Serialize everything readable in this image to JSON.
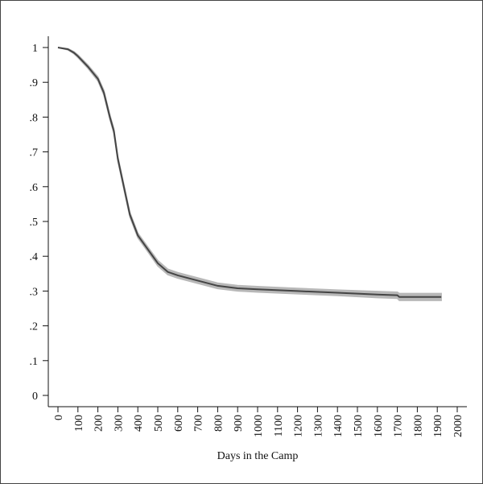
{
  "chart_data": {
    "type": "line",
    "x_label": "Days in the Camp",
    "x": [
      0,
      50,
      80,
      100,
      150,
      200,
      230,
      260,
      280,
      300,
      330,
      360,
      400,
      450,
      500,
      550,
      600,
      700,
      800,
      900,
      1000,
      1200,
      1400,
      1600,
      1700,
      1710,
      1920
    ],
    "series": [
      {
        "color": "#444444",
        "values": [
          1.0,
          0.995,
          0.985,
          0.975,
          0.945,
          0.91,
          0.87,
          0.8,
          0.76,
          0.68,
          0.6,
          0.52,
          0.46,
          0.42,
          0.38,
          0.355,
          0.345,
          0.33,
          0.315,
          0.308,
          0.305,
          0.3,
          0.295,
          0.29,
          0.288,
          0.283,
          0.283
        ]
      }
    ],
    "band": {
      "color": "#b8b8b8",
      "lower": [
        1.0,
        0.993,
        0.982,
        0.971,
        0.94,
        0.904,
        0.863,
        0.793,
        0.753,
        0.673,
        0.593,
        0.513,
        0.453,
        0.413,
        0.372,
        0.347,
        0.337,
        0.322,
        0.307,
        0.3,
        0.297,
        0.292,
        0.287,
        0.281,
        0.279,
        0.273,
        0.273
      ],
      "upper": [
        1.0,
        0.997,
        0.988,
        0.979,
        0.95,
        0.916,
        0.877,
        0.807,
        0.767,
        0.687,
        0.607,
        0.527,
        0.467,
        0.427,
        0.388,
        0.363,
        0.353,
        0.338,
        0.323,
        0.316,
        0.313,
        0.308,
        0.303,
        0.299,
        0.297,
        0.293,
        0.293
      ]
    },
    "xlim": [
      0,
      2000
    ],
    "xticks": [
      0,
      100,
      200,
      300,
      400,
      500,
      600,
      700,
      800,
      900,
      1000,
      1100,
      1200,
      1300,
      1400,
      1500,
      1600,
      1700,
      1800,
      1900,
      2000
    ],
    "ylim": [
      0,
      1
    ],
    "yticks": [
      0,
      {
        "value": 0.1,
        "label": ".1"
      },
      {
        "value": 0.2,
        "label": ".2"
      },
      {
        "value": 0.3,
        "label": ".3"
      },
      {
        "value": 0.4,
        "label": ".4"
      },
      {
        "value": 0.5,
        "label": ".5"
      },
      {
        "value": 0.6,
        "label": ".6"
      },
      {
        "value": 0.7,
        "label": ".7"
      },
      {
        "value": 0.8,
        "label": ".8"
      },
      {
        "value": 0.9,
        "label": ".9"
      },
      1
    ],
    "grid": false
  }
}
